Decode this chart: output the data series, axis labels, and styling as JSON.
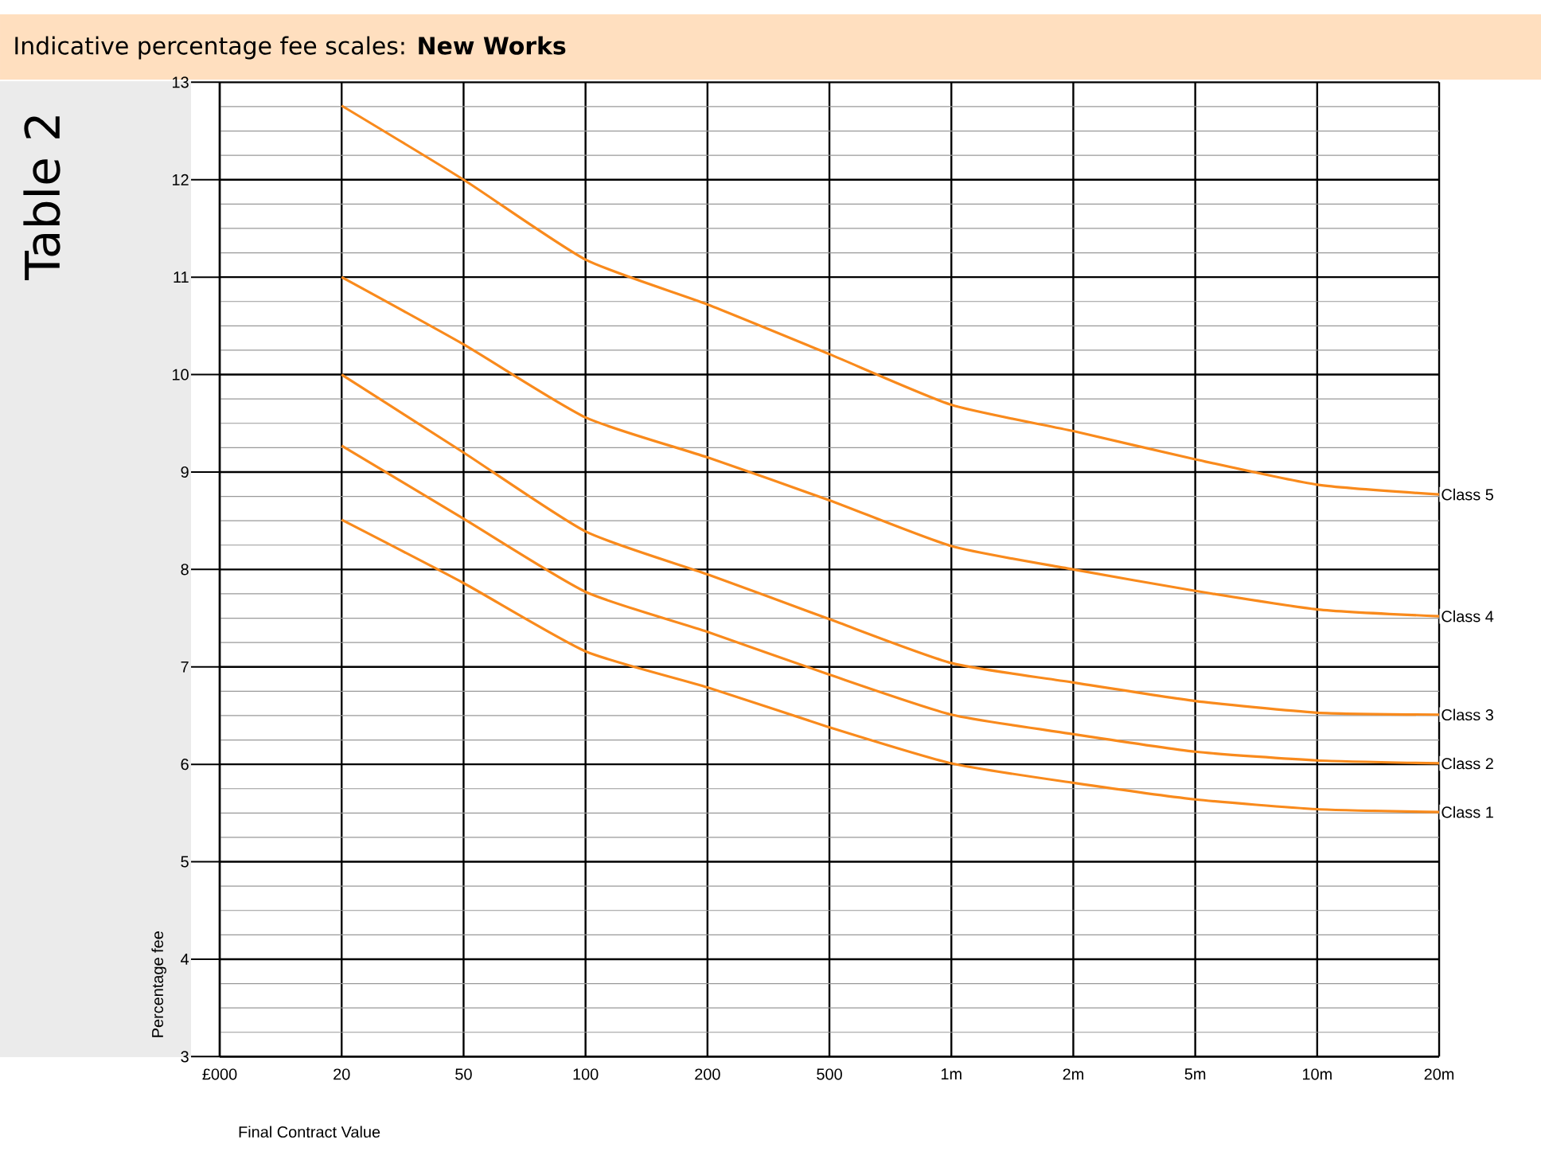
{
  "chart_data": {
    "type": "line",
    "title": "Indicative percentage fee scales: **New Works**",
    "xlabel": "Final Contract Value",
    "ylabel": "Percentage fee",
    "annotations": [
      "Table 2"
    ],
    "categories": [
      "£000",
      "20",
      "50",
      "100",
      "200",
      "500",
      "1m",
      "2m",
      "5m",
      "10m",
      "20m"
    ],
    "series": [
      {
        "name": "Class 1",
        "color": "#f98a1c",
        "values": [
          null,
          8.51,
          7.86,
          7.16,
          6.79,
          6.38,
          6.01,
          5.81,
          5.64,
          5.54,
          5.51
        ]
      },
      {
        "name": "Class 2",
        "color": "#f98a1c",
        "values": [
          null,
          9.27,
          8.52,
          7.77,
          7.36,
          6.92,
          6.51,
          6.31,
          6.13,
          6.04,
          6.01
        ]
      },
      {
        "name": "Class 3",
        "color": "#f98a1c",
        "values": [
          null,
          10.0,
          9.2,
          8.39,
          7.95,
          7.49,
          7.04,
          6.84,
          6.65,
          6.53,
          6.51
        ]
      },
      {
        "name": "Class 4",
        "color": "#f98a1c",
        "values": [
          null,
          11.0,
          10.31,
          9.56,
          9.15,
          8.71,
          8.24,
          8.0,
          7.78,
          7.59,
          7.52
        ]
      },
      {
        "name": "Class 5",
        "color": "#f98a1c",
        "values": [
          null,
          12.76,
          12.0,
          11.18,
          10.72,
          10.21,
          9.69,
          9.42,
          9.13,
          8.87,
          8.77
        ]
      }
    ],
    "ylim": [
      3,
      13
    ],
    "yticks": [
      3,
      4,
      5,
      6,
      7,
      8,
      9,
      10,
      11,
      12,
      13
    ],
    "grid": true
  }
}
